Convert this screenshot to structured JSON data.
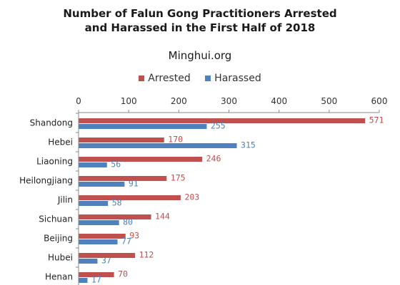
{
  "chart_data": {
    "type": "bar",
    "orientation": "horizontal",
    "title_line1": "Number of Falun Gong Practitioners Arrested",
    "title_line2": "and Harassed in the First Half of 2018",
    "subtitle": "Minghui.org",
    "categories": [
      "Shandong",
      "Hebei",
      "Liaoning",
      "Heilongjiang",
      "Jilin",
      "Sichuan",
      "Beijing",
      "Hubei",
      "Henan"
    ],
    "series": [
      {
        "name": "Arrested",
        "color": "#c0504d",
        "values": [
          571,
          170,
          246,
          175,
          203,
          144,
          93,
          112,
          70
        ]
      },
      {
        "name": "Harassed",
        "color": "#4f81bd",
        "values": [
          255,
          315,
          56,
          91,
          58,
          80,
          77,
          37,
          17
        ]
      }
    ],
    "xlim": [
      0,
      600
    ],
    "xticks": [
      0,
      100,
      200,
      300,
      400,
      500,
      600
    ],
    "legend_position": "top",
    "axis_position": "top",
    "grid": false
  }
}
